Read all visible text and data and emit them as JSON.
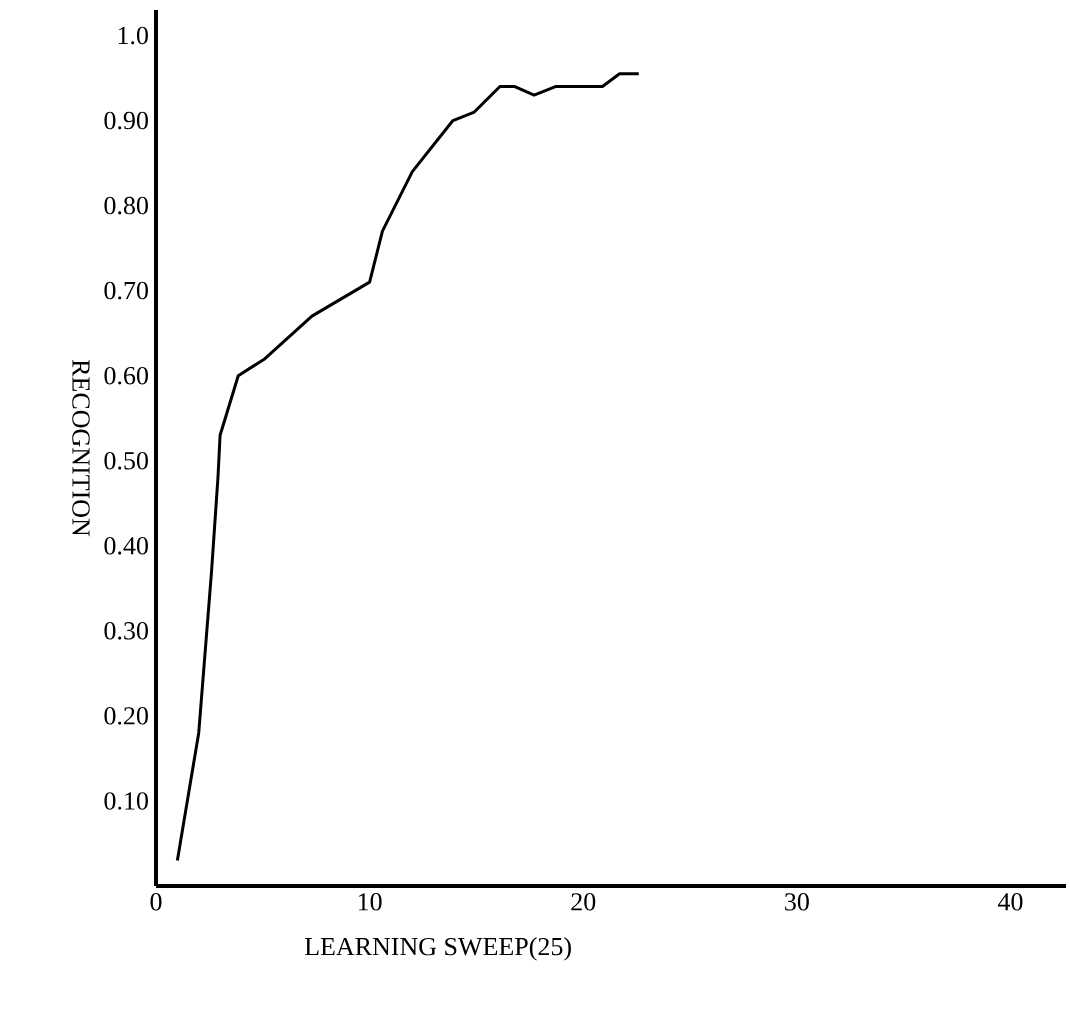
{
  "chart_data": {
    "type": "line",
    "xlabel": "LEARNING SWEEP(25)",
    "ylabel": "RECOGNITION",
    "xlim": [
      0,
      42.6
    ],
    "ylim": [
      0,
      1.03
    ],
    "xticks": [
      0,
      10,
      20,
      30,
      40
    ],
    "yticks": [
      {
        "value": 0.1,
        "label": "0.10"
      },
      {
        "value": 0.2,
        "label": "0.20"
      },
      {
        "value": 0.3,
        "label": "0.30"
      },
      {
        "value": 0.4,
        "label": "0.40"
      },
      {
        "value": 0.5,
        "label": "0.50"
      },
      {
        "value": 0.6,
        "label": "0.60"
      },
      {
        "value": 0.7,
        "label": "0.70"
      },
      {
        "value": 0.8,
        "label": "0.80"
      },
      {
        "value": 0.9,
        "label": "0.90"
      },
      {
        "value": 1.0,
        "label": "1.0"
      }
    ],
    "grid": false,
    "marker": "none",
    "line_style": "solid",
    "series": [
      {
        "color": "#000000",
        "x": [
          1.0,
          2.0,
          2.6,
          2.9,
          3.0,
          3.85,
          5.1,
          7.3,
          10.0,
          10.6,
          12.0,
          13.9,
          14.9,
          16.1,
          16.8,
          17.7,
          18.7,
          20.9,
          21.7,
          22.6
        ],
        "values": [
          0.03,
          0.18,
          0.37,
          0.48,
          0.53,
          0.6,
          0.62,
          0.67,
          0.71,
          0.77,
          0.84,
          0.9,
          0.91,
          0.94,
          0.94,
          0.93,
          0.94,
          0.94,
          0.955,
          0.955
        ]
      }
    ]
  }
}
